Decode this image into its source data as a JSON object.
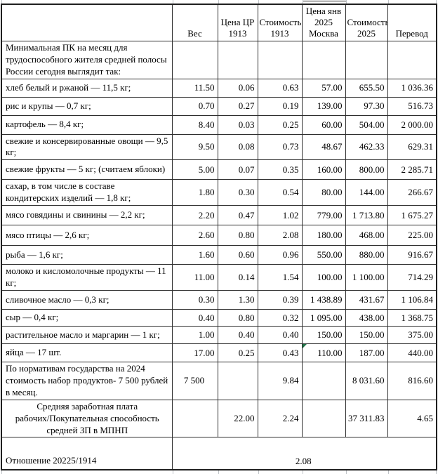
{
  "colors": {
    "border": "#1f1f1f",
    "error_indicator_green": "#1e7145",
    "gridline_stub": "#c0c4c8",
    "background": "#ffffff",
    "text": "#000000"
  },
  "table": {
    "headers": [
      "",
      "Вес",
      "Цена ЦР\n1913",
      "Стоимость\n1913",
      "Цена янв\n2025\nМосква",
      "Стоимость\n2025",
      "Перевод"
    ],
    "intro_label": "Минимальная ПК на месяц для трудоспособного жителя средней полосы России сегодня выглядит так:",
    "rows": [
      {
        "label": "хлеб белый и ржаной — 11,5 кг;",
        "values": [
          "11.50",
          "0.06",
          "0.63",
          "57.00",
          "655.50",
          "1 036.36"
        ]
      },
      {
        "label": "рис и крупы — 0,7 кг;",
        "values": [
          "0.70",
          "0.27",
          "0.19",
          "139.00",
          "97.30",
          "516.73"
        ]
      },
      {
        "label": "картофель — 8,4 кг;",
        "values": [
          "8.40",
          "0.03",
          "0.25",
          "60.00",
          "504.00",
          "2 000.00"
        ]
      },
      {
        "label": "свежие и консервированные овощи — 9,5 кг;",
        "values": [
          "9.50",
          "0.08",
          "0.73",
          "48.67",
          "462.33",
          "629.31"
        ]
      },
      {
        "label": "свежие фрукты — 5 кг; (считаем яблоки)",
        "values": [
          "5.00",
          "0.07",
          "0.35",
          "160.00",
          "800.00",
          "2 285.71"
        ]
      },
      {
        "label": "сахар, в том числе в составе кондитерских изделий — 1,8 кг;",
        "values": [
          "1.80",
          "0.30",
          "0.54",
          "80.00",
          "144.00",
          "266.67"
        ]
      },
      {
        "label": "мясо говядины и свинины — 2,2 кг;",
        "values": [
          "2.20",
          "0.47",
          "1.02",
          "779.00",
          "1 713.80",
          "1 675.27"
        ]
      },
      {
        "label": "мясо птицы — 2,6 кг;",
        "values": [
          "2.60",
          "0.80",
          "2.08",
          "180.00",
          "468.00",
          "225.00"
        ]
      },
      {
        "label": "рыба — 1,6 кг;",
        "values": [
          "1.60",
          "0.60",
          "0.96",
          "550.00",
          "880.00",
          "916.67"
        ]
      },
      {
        "label": "молоко и кисломолочные продукты — 11 кг;",
        "values": [
          "11.00",
          "0.14",
          "1.54",
          "100.00",
          "1 100.00",
          "714.29"
        ]
      },
      {
        "label": "сливочное масло — 0,3 кг;",
        "values": [
          "0.30",
          "1.30",
          "0.39",
          "1 438.89",
          "431.67",
          "1 106.84"
        ]
      },
      {
        "label": "сыр — 0,4 кг;",
        "values": [
          "0.40",
          "0.80",
          "0.32",
          "1 095.00",
          "438.00",
          "1 368.75"
        ]
      },
      {
        "label": "растительное масло и маргарин — 1 кг;",
        "values": [
          "1.00",
          "0.40",
          "0.40",
          "150.00",
          "150.00",
          "375.00"
        ]
      },
      {
        "label": "яйца — 17 шт.",
        "values": [
          "17.00",
          "0.25",
          "0.43",
          "110.00",
          "187.00",
          "440.00"
        ],
        "marker_col": 3
      },
      {
        "label": "По нормативам государства на 2024 стоимость набор продуктов- 7 500 рублей в месяц.",
        "values": [
          "7 500",
          "",
          "9.84",
          "",
          "8 031.60",
          "816.60"
        ],
        "ves_center": true
      },
      {
        "label": "Средняя заработная плата\nрабочих/Покупательная способность\nсредней ЗП в МПНП",
        "values": [
          "",
          "22.00",
          "2.24",
          "",
          "37 311.83",
          "4.65"
        ],
        "label_center": true
      }
    ],
    "ratio_row": {
      "label": "Отношение 20225/1914",
      "value": "2.08"
    }
  }
}
